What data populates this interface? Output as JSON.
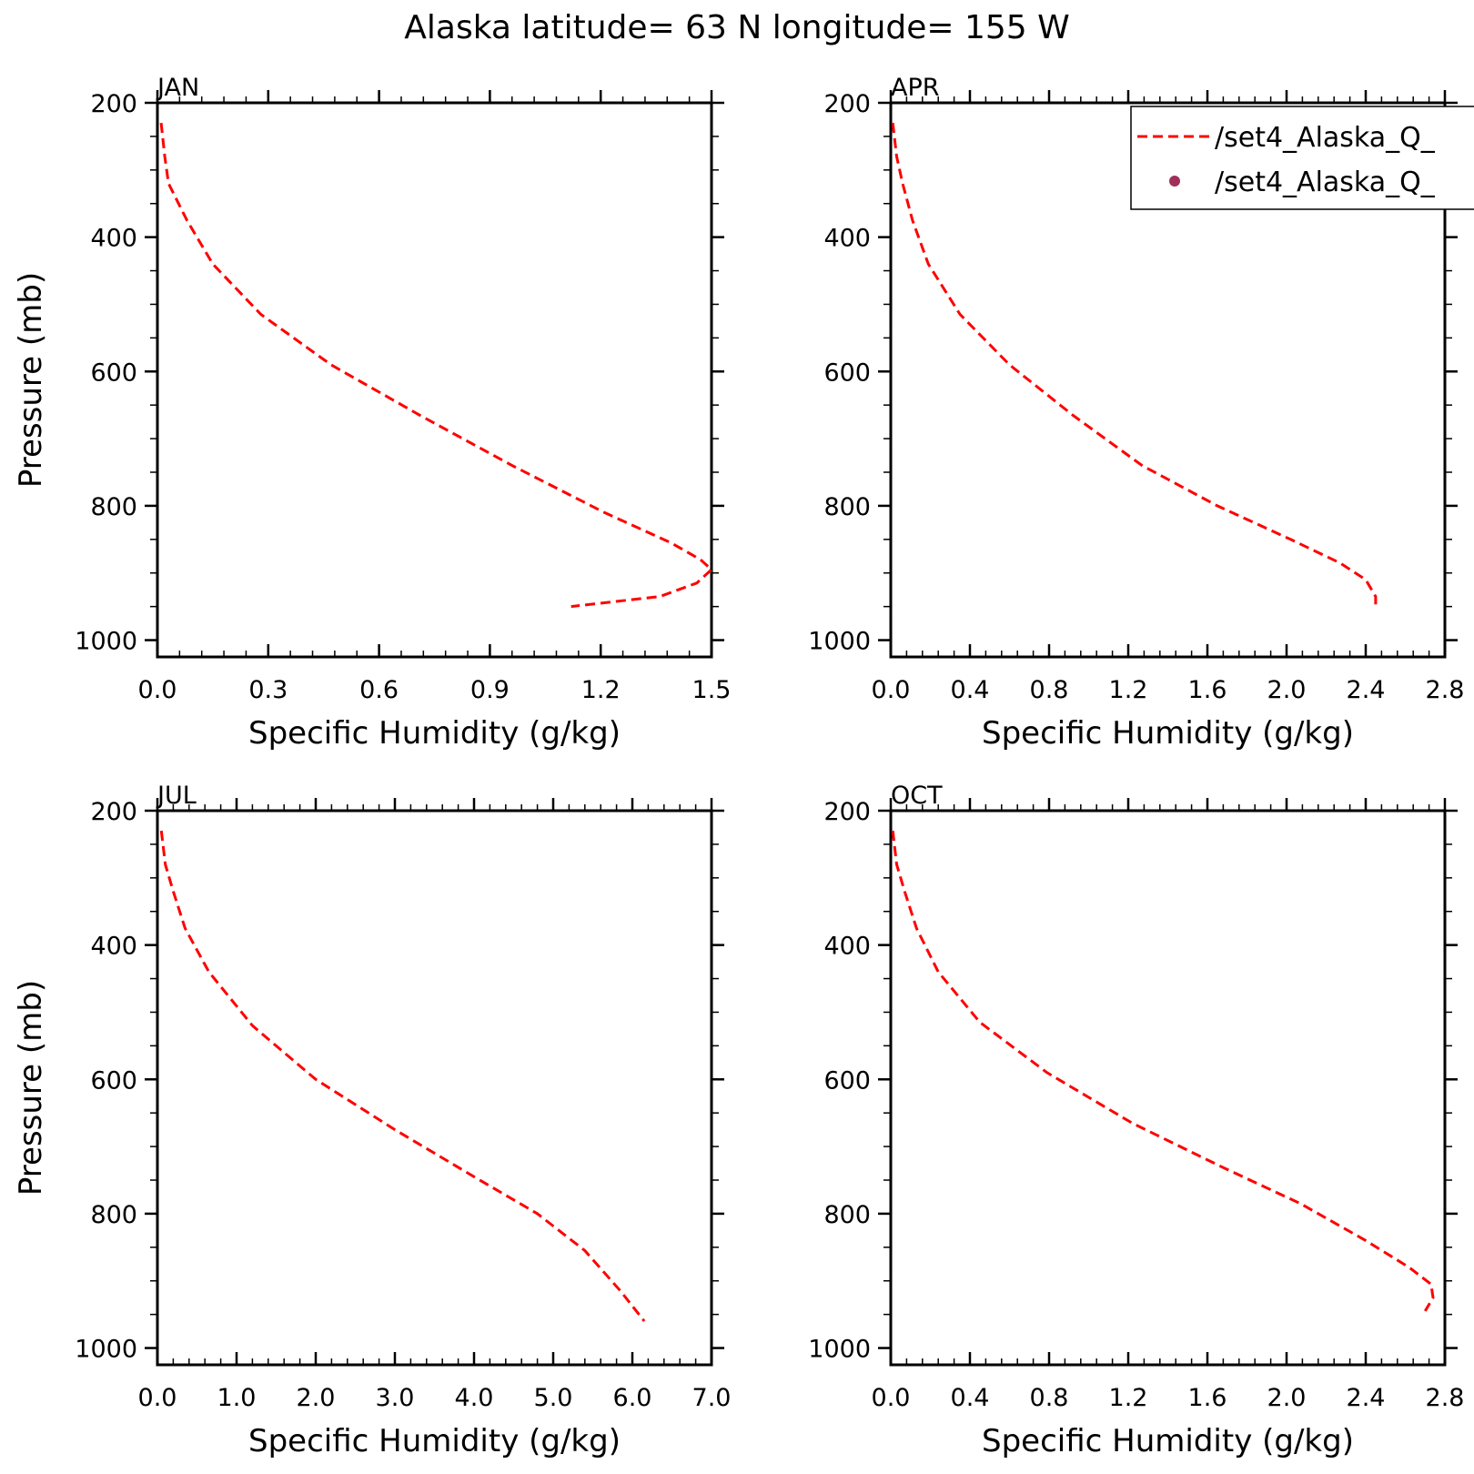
{
  "title": "Alaska  latitude= 63 N longitude= 155 W",
  "legend": {
    "entries": [
      {
        "label": "/set4_Alaska_Q_",
        "style": "dashed-line",
        "color": "#ff0000"
      },
      {
        "label": "/set4_Alaska_Q_",
        "style": "marker",
        "color": "#a0305a"
      }
    ]
  },
  "chart_data": [
    {
      "type": "line",
      "panel": "JAN",
      "xlabel": "Specific Humidity (g/kg)",
      "ylabel": "Pressure (mb)",
      "xlim": [
        0,
        1.5
      ],
      "ylim": [
        200,
        1025
      ],
      "y_inverted": true,
      "xticks": [
        0.0,
        0.3,
        0.6,
        0.9,
        1.2,
        1.5
      ],
      "xtick_labels": [
        "0.0",
        "0.3",
        "0.6",
        "0.9",
        "1.2",
        "1.5"
      ],
      "yticks": [
        200,
        400,
        600,
        800,
        1000
      ],
      "ytick_labels": [
        "200",
        "400",
        "600",
        "800",
        "1000"
      ],
      "series": [
        {
          "style": "dashed",
          "color": "#ff0000",
          "x": [
            0.01,
            0.02,
            0.03,
            0.08,
            0.15,
            0.28,
            0.47,
            0.71,
            0.96,
            1.21,
            1.39,
            1.47,
            1.5,
            1.46,
            1.36,
            1.12
          ],
          "y": [
            230,
            280,
            320,
            375,
            440,
            515,
            590,
            665,
            740,
            810,
            855,
            880,
            895,
            915,
            935,
            950
          ]
        }
      ]
    },
    {
      "type": "line",
      "panel": "APR",
      "xlabel": "Specific Humidity (g/kg)",
      "ylabel": "",
      "xlim": [
        0,
        2.8
      ],
      "ylim": [
        200,
        1025
      ],
      "y_inverted": true,
      "xticks": [
        0.0,
        0.4,
        0.8,
        1.2,
        1.6,
        2.0,
        2.4,
        2.8
      ],
      "xtick_labels": [
        "0.0",
        "0.4",
        "0.8",
        "1.2",
        "1.6",
        "2.0",
        "2.4",
        "2.8"
      ],
      "yticks": [
        200,
        400,
        600,
        800,
        1000
      ],
      "ytick_labels": [
        "200",
        "400",
        "600",
        "800",
        "1000"
      ],
      "series": [
        {
          "style": "dashed",
          "color": "#ff0000",
          "x": [
            0.01,
            0.03,
            0.06,
            0.11,
            0.19,
            0.35,
            0.6,
            0.92,
            1.27,
            1.65,
            2.02,
            2.27,
            2.4,
            2.45,
            2.45
          ],
          "y": [
            230,
            280,
            320,
            375,
            440,
            515,
            590,
            665,
            740,
            800,
            850,
            885,
            910,
            935,
            955
          ]
        }
      ]
    },
    {
      "type": "line",
      "panel": "JUL",
      "xlabel": "Specific Humidity (g/kg)",
      "ylabel": "Pressure (mb)",
      "xlim": [
        0,
        7
      ],
      "ylim": [
        200,
        1025
      ],
      "y_inverted": true,
      "xticks": [
        0,
        1,
        2,
        3,
        4,
        5,
        6,
        7
      ],
      "xtick_labels": [
        "0.0",
        "1.0",
        "2.0",
        "3.0",
        "4.0",
        "5.0",
        "6.0",
        "7.0"
      ],
      "yticks": [
        200,
        400,
        600,
        800,
        1000
      ],
      "ytick_labels": [
        "200",
        "400",
        "600",
        "800",
        "1000"
      ],
      "series": [
        {
          "style": "dashed",
          "color": "#ff0000",
          "x": [
            0.05,
            0.1,
            0.2,
            0.35,
            0.65,
            1.2,
            2.0,
            3.0,
            4.0,
            4.8,
            5.4,
            5.85,
            6.15
          ],
          "y": [
            230,
            280,
            320,
            375,
            440,
            520,
            600,
            675,
            745,
            800,
            855,
            915,
            960
          ]
        }
      ]
    },
    {
      "type": "line",
      "panel": "OCT",
      "xlabel": "Specific Humidity (g/kg)",
      "ylabel": "",
      "xlim": [
        0,
        2.8
      ],
      "ylim": [
        200,
        1025
      ],
      "y_inverted": true,
      "xticks": [
        0.0,
        0.4,
        0.8,
        1.2,
        1.6,
        2.0,
        2.4,
        2.8
      ],
      "xtick_labels": [
        "0.0",
        "0.4",
        "0.8",
        "1.2",
        "1.6",
        "2.0",
        "2.4",
        "2.8"
      ],
      "yticks": [
        200,
        400,
        600,
        800,
        1000
      ],
      "ytick_labels": [
        "200",
        "400",
        "600",
        "800",
        "1000"
      ],
      "series": [
        {
          "style": "dashed",
          "color": "#ff0000",
          "x": [
            0.01,
            0.03,
            0.07,
            0.13,
            0.24,
            0.45,
            0.79,
            1.22,
            1.67,
            2.07,
            2.4,
            2.62,
            2.73,
            2.74,
            2.7
          ],
          "y": [
            230,
            280,
            320,
            375,
            440,
            515,
            590,
            665,
            730,
            785,
            840,
            880,
            905,
            925,
            945
          ]
        }
      ]
    }
  ]
}
